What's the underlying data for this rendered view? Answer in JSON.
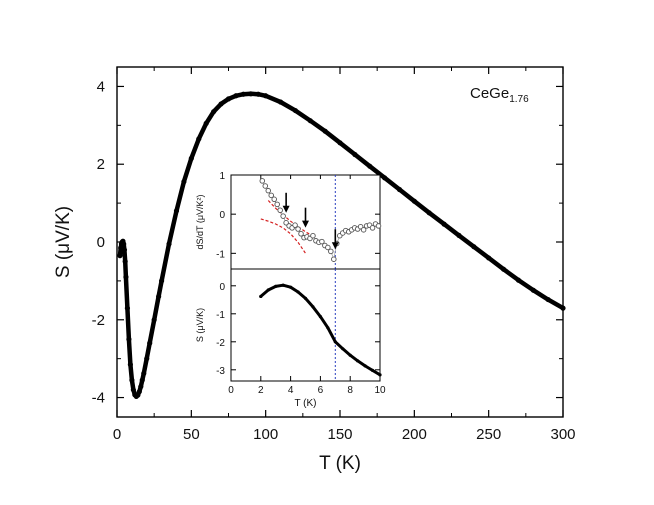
{
  "chart_data": [
    {
      "id": "main",
      "type": "line",
      "title": "",
      "xlabel": "T (K)",
      "ylabel": "S (μV/K)",
      "xlim": [
        0,
        300
      ],
      "ylim": [
        -4.5,
        4.5
      ],
      "xticks": [
        0,
        50,
        100,
        150,
        200,
        250,
        300
      ],
      "yticks": [
        -4,
        -2,
        0,
        2,
        4
      ],
      "annotation": {
        "text": "CeGe",
        "subscript": "1.76"
      },
      "series": [
        {
          "name": "S",
          "color": "#000000",
          "marker": "circle",
          "x": [
            2,
            2.5,
            3,
            3.5,
            4,
            4.5,
            5,
            5.5,
            6,
            7,
            8,
            9,
            10,
            11,
            12,
            13,
            14,
            15,
            16,
            17,
            18,
            20,
            22,
            25,
            28,
            30,
            35,
            40,
            45,
            50,
            55,
            60,
            65,
            70,
            75,
            80,
            85,
            90,
            95,
            100,
            110,
            120,
            130,
            140,
            150,
            160,
            170,
            180,
            190,
            200,
            210,
            220,
            230,
            240,
            250,
            260,
            270,
            280,
            290,
            300
          ],
          "y": [
            -0.35,
            -0.15,
            -0.05,
            0.0,
            0.02,
            -0.05,
            -0.2,
            -0.5,
            -0.9,
            -1.7,
            -2.5,
            -3.15,
            -3.55,
            -3.8,
            -3.93,
            -3.97,
            -3.94,
            -3.85,
            -3.72,
            -3.55,
            -3.38,
            -3.0,
            -2.6,
            -2.0,
            -1.4,
            -1.0,
            -0.05,
            0.8,
            1.55,
            2.15,
            2.65,
            3.05,
            3.35,
            3.55,
            3.68,
            3.76,
            3.8,
            3.81,
            3.8,
            3.76,
            3.6,
            3.38,
            3.12,
            2.85,
            2.55,
            2.25,
            1.95,
            1.65,
            1.35,
            1.05,
            0.75,
            0.46,
            0.17,
            -0.12,
            -0.41,
            -0.7,
            -0.98,
            -1.24,
            -1.48,
            -1.7
          ]
        }
      ]
    },
    {
      "id": "inset-top",
      "type": "scatter",
      "xlabel": "",
      "ylabel": "dS/dT (μV/K²)",
      "xlim": [
        0,
        10
      ],
      "ylim": [
        -1.4,
        1
      ],
      "yticks": [
        -1,
        0,
        1
      ],
      "arrows_at_T": [
        3.7,
        5.0,
        7.0
      ],
      "vline_T": 7.0,
      "series": [
        {
          "name": "dS/dT",
          "marker": "open-circle",
          "color": "#555555",
          "x": [
            2.1,
            2.3,
            2.5,
            2.7,
            2.9,
            3.1,
            3.3,
            3.5,
            3.7,
            3.9,
            4.1,
            4.3,
            4.5,
            4.7,
            4.9,
            5.1,
            5.3,
            5.5,
            5.7,
            5.9,
            6.1,
            6.3,
            6.5,
            6.7,
            6.9,
            7.1,
            7.3,
            7.5,
            7.7,
            7.9,
            8.1,
            8.3,
            8.5,
            8.7,
            8.9,
            9.1,
            9.3,
            9.5,
            9.7,
            9.9
          ],
          "y": [
            0.85,
            0.72,
            0.6,
            0.48,
            0.38,
            0.25,
            0.1,
            -0.05,
            -0.22,
            -0.3,
            -0.35,
            -0.28,
            -0.38,
            -0.5,
            -0.6,
            -0.58,
            -0.62,
            -0.55,
            -0.68,
            -0.72,
            -0.7,
            -0.8,
            -0.85,
            -0.95,
            -1.15,
            -0.75,
            -0.55,
            -0.48,
            -0.42,
            -0.45,
            -0.4,
            -0.35,
            -0.38,
            -0.32,
            -0.4,
            -0.3,
            -0.28,
            -0.35,
            -0.25,
            -0.3
          ]
        },
        {
          "name": "fit-1",
          "style": "dashed",
          "color": "#d42020",
          "x": [
            2.0,
            2.5,
            3.0,
            3.5,
            4.0,
            4.5,
            5.0
          ],
          "y": [
            -0.12,
            -0.18,
            -0.25,
            -0.35,
            -0.5,
            -0.72,
            -1.0
          ]
        },
        {
          "name": "fit-2",
          "style": "dashed",
          "color": "#d42020",
          "x": [
            2.5,
            3.0,
            3.5,
            4.0,
            4.5,
            5.0,
            5.5
          ],
          "y": [
            0.35,
            0.15,
            -0.02,
            -0.18,
            -0.32,
            -0.45,
            -0.56
          ]
        }
      ]
    },
    {
      "id": "inset-bottom",
      "type": "line",
      "xlabel": "T (K)",
      "ylabel": "S (μV/K)",
      "xlim": [
        0,
        10
      ],
      "ylim": [
        -3.4,
        0.6
      ],
      "xticks": [
        0,
        2,
        4,
        6,
        8,
        10
      ],
      "yticks": [
        -3,
        -2,
        -1,
        0
      ],
      "vline_T": 7.0,
      "series": [
        {
          "name": "S",
          "color": "#000000",
          "x": [
            2.0,
            2.5,
            3.0,
            3.5,
            4.0,
            4.5,
            5.0,
            5.5,
            6.0,
            6.5,
            7.0,
            7.5,
            8.0,
            8.5,
            9.0,
            9.5,
            10.0
          ],
          "y": [
            -0.38,
            -0.15,
            -0.02,
            0.02,
            -0.05,
            -0.22,
            -0.45,
            -0.75,
            -1.1,
            -1.5,
            -2.0,
            -2.25,
            -2.48,
            -2.68,
            -2.86,
            -3.02,
            -3.18
          ]
        }
      ]
    }
  ]
}
